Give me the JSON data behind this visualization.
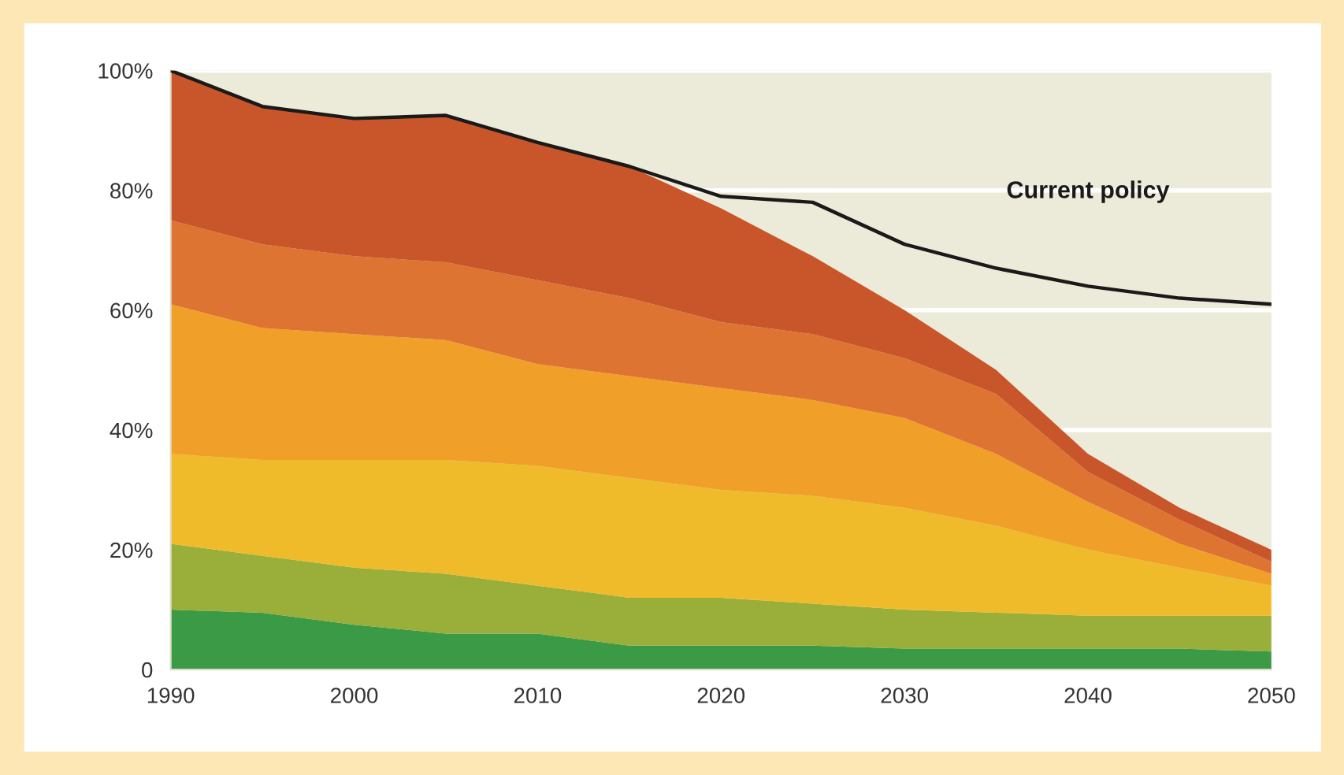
{
  "chart_data": {
    "type": "area",
    "stacked": true,
    "x": [
      1990,
      1995,
      2000,
      2005,
      2010,
      2015,
      2020,
      2025,
      2030,
      2035,
      2040,
      2045,
      2050
    ],
    "series": [
      {
        "color": "#3a9a45",
        "values": [
          10,
          9.5,
          7.5,
          6,
          6,
          4,
          4,
          4,
          3.5,
          3.5,
          3.5,
          3.5,
          3
        ]
      },
      {
        "color": "#9aae3a",
        "values": [
          11,
          9.5,
          9.5,
          10,
          8,
          8,
          8,
          7,
          6.5,
          6,
          5.5,
          5.5,
          6
        ]
      },
      {
        "color": "#f0bb2a",
        "values": [
          15,
          16,
          18,
          19,
          20,
          20,
          18,
          18,
          17,
          14.5,
          11,
          8,
          5
        ]
      },
      {
        "color": "#f0a028",
        "values": [
          25,
          22,
          21,
          20,
          17,
          17,
          17,
          16,
          15,
          12,
          8,
          4,
          2
        ]
      },
      {
        "color": "#dd7432",
        "values": [
          14,
          14,
          13,
          13,
          14,
          13,
          11,
          11,
          10,
          10,
          5,
          4,
          2
        ]
      },
      {
        "color": "#c9562a",
        "values": [
          25,
          23,
          23,
          24.5,
          23,
          22,
          19,
          13,
          8,
          4,
          3,
          2,
          2
        ]
      },
      {
        "type": "line",
        "name": "Current policy",
        "color": "#1a1a1a",
        "values": [
          100,
          94,
          92,
          92.5,
          88,
          84,
          79,
          78,
          71,
          67,
          64,
          62,
          61
        ]
      }
    ],
    "xlim": [
      1990,
      2050
    ],
    "ylim": [
      0,
      100
    ],
    "xticks": [
      1990,
      2000,
      2010,
      2020,
      2030,
      2040,
      2050
    ],
    "yticks": [
      0,
      {
        "value": 20,
        "label": "20%"
      },
      {
        "value": 40,
        "label": "40%"
      },
      {
        "value": 60,
        "label": "60%"
      },
      {
        "value": 80,
        "label": "80%"
      },
      {
        "value": 100,
        "label": "100%"
      }
    ],
    "grid": "y",
    "legend": false
  }
}
